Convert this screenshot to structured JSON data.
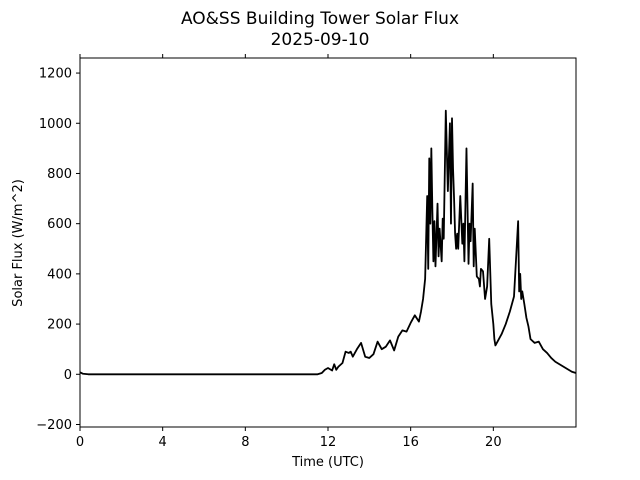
{
  "chart_data": {
    "type": "line",
    "title": "AO&SS Building Tower Solar Flux",
    "subtitle": "2025-09-10",
    "xlabel": "Time (UTC)",
    "ylabel": "Solar Flux (W/m^2)",
    "xlim": [
      0,
      24
    ],
    "ylim": [
      -210,
      1260
    ],
    "x_ticks": [
      0,
      4,
      8,
      12,
      16,
      20
    ],
    "x_tick_labels": [
      "0",
      "4",
      "8",
      "12",
      "16",
      "20"
    ],
    "y_ticks": [
      -200,
      0,
      200,
      400,
      600,
      800,
      1000,
      1200
    ],
    "y_tick_labels": [
      "−200",
      "0",
      "200",
      "400",
      "600",
      "800",
      "1000",
      "1200"
    ],
    "grid": false,
    "line_color": "#000000",
    "series": [
      {
        "x": [
          0,
          0.15,
          0.4,
          11.5,
          11.7,
          11.85,
          12.0,
          12.1,
          12.2,
          12.3,
          12.4,
          12.5,
          12.7,
          12.85,
          13.0,
          13.1,
          13.2,
          13.4,
          13.6,
          13.8,
          14.0,
          14.2,
          14.4,
          14.6,
          14.8,
          15.0,
          15.2,
          15.4,
          15.6,
          15.8,
          16.0,
          16.2,
          16.4,
          16.5,
          16.6,
          16.7,
          16.8,
          16.85,
          16.9,
          16.95,
          17.0,
          17.05,
          17.1,
          17.15,
          17.2,
          17.3,
          17.35,
          17.4,
          17.5,
          17.55,
          17.6,
          17.7,
          17.8,
          17.9,
          17.95,
          18.0,
          18.05,
          18.1,
          18.15,
          18.2,
          18.25,
          18.3,
          18.4,
          18.5,
          18.55,
          18.6,
          18.7,
          18.8,
          18.85,
          18.9,
          19.0,
          19.05,
          19.1,
          19.2,
          19.3,
          19.35,
          19.4,
          19.5,
          19.6,
          19.7,
          19.8,
          19.9,
          20.0,
          20.05,
          20.1,
          20.2,
          20.4,
          20.6,
          20.8,
          21.0,
          21.2,
          21.25,
          21.3,
          21.35,
          21.4,
          21.5,
          21.6,
          21.7,
          21.8,
          22.0,
          22.2,
          22.4,
          22.6,
          22.8,
          23.0,
          23.2,
          23.4,
          23.6,
          23.8,
          24.0
        ],
        "y": [
          8,
          2,
          0,
          0,
          5,
          18,
          25,
          20,
          15,
          40,
          18,
          30,
          45,
          90,
          85,
          90,
          70,
          100,
          125,
          70,
          65,
          80,
          130,
          100,
          110,
          135,
          95,
          150,
          175,
          170,
          205,
          235,
          210,
          250,
          300,
          380,
          710,
          420,
          860,
          600,
          900,
          650,
          450,
          610,
          430,
          680,
          470,
          580,
          450,
          620,
          540,
          1050,
          730,
          1000,
          600,
          1020,
          820,
          700,
          560,
          500,
          560,
          500,
          710,
          520,
          600,
          450,
          900,
          440,
          600,
          530,
          760,
          430,
          580,
          390,
          380,
          350,
          420,
          410,
          300,
          350,
          540,
          280,
          200,
          140,
          115,
          130,
          160,
          200,
          250,
          310,
          610,
          330,
          400,
          300,
          330,
          280,
          225,
          190,
          140,
          125,
          130,
          100,
          85,
          65,
          50,
          40,
          30,
          20,
          10,
          5
        ]
      }
    ]
  }
}
